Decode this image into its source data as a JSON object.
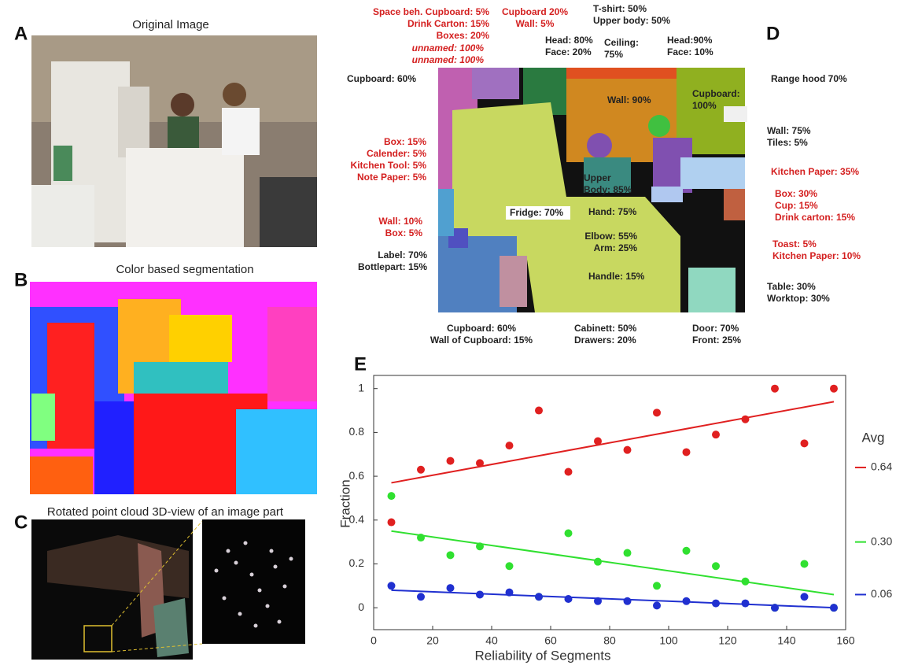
{
  "panels": {
    "a": {
      "letter": "A",
      "title": "Original Image"
    },
    "b": {
      "letter": "B",
      "title": "Color based segmentation"
    },
    "c": {
      "letter": "C",
      "title": "Rotated point cloud 3D-view of an image part"
    },
    "d": {
      "letter": "D",
      "labels": [
        [
          "Space beh. Cupboard: 5%",
          "Drink Carton: 15%",
          "Boxes: 20%"
        ],
        [
          "unnamed: 100%",
          "unnamed: 100%"
        ],
        [
          "Cupboard 20%",
          "Wall: 5%"
        ],
        [
          "Head: 80%",
          "Face: 20%"
        ],
        [
          "Ceiling:",
          "75%"
        ],
        [
          "T-shirt: 50%",
          "Upper body: 50%"
        ],
        [
          "Head:90%",
          "Face: 10%"
        ],
        [
          "Cupboard: 60%"
        ],
        [
          "Range hood 70%"
        ],
        [
          "Wall: 90%"
        ],
        [
          "Cupboard:",
          "100%"
        ],
        [
          "Box: 15%",
          "Calender: 5%",
          "Kitchen Tool: 5%",
          "Note Paper: 5%"
        ],
        [
          "Wall: 75%",
          "Tiles:  5%"
        ],
        [
          "Upper",
          "Body: 85%"
        ],
        [
          "Kitchen Paper: 35%"
        ],
        [
          "Fridge: 70%"
        ],
        [
          "Hand: 75%"
        ],
        [
          "Box: 30%",
          "Cup: 15%",
          "Drink carton: 15%"
        ],
        [
          "Wall: 10%",
          "Box: 5%"
        ],
        [
          "Elbow:  55%",
          "Arm: 25%"
        ],
        [
          "Toast: 5%",
          "Kitchen Paper: 10%"
        ],
        [
          "Label: 70%",
          "Bottlepart: 15%"
        ],
        [
          "Handle: 15%"
        ],
        [
          "Table: 30%",
          "Worktop: 30%"
        ],
        [
          "Cupboard: 60%",
          "Wall of Cupboard: 15%"
        ],
        [
          "Cabinett: 50%",
          "Drawers: 20%"
        ],
        [
          "Door: 70%",
          "Front:  25%"
        ]
      ]
    }
  },
  "chart_data": {
    "type": "scatter",
    "letter": "E",
    "x_label": "Reliability of Segments",
    "y_label": "Fraction",
    "y2_title": "Avg",
    "x": [
      6,
      16,
      26,
      36,
      46,
      56,
      66,
      76,
      86,
      96,
      106,
      116,
      126,
      136,
      146,
      156
    ],
    "series": [
      {
        "color": "#e02020",
        "values": [
          0.39,
          0.63,
          0.67,
          0.66,
          0.74,
          0.9,
          0.62,
          0.76,
          0.72,
          0.89,
          0.71,
          0.79,
          0.86,
          1.0,
          0.75,
          1.0
        ]
      },
      {
        "color": "#30e030",
        "values": [
          0.51,
          0.32,
          0.24,
          0.28,
          0.19,
          0.05,
          0.34,
          0.21,
          0.25,
          0.1,
          0.26,
          0.19,
          0.12,
          0.0,
          0.2,
          0.0
        ]
      },
      {
        "color": "#2030d0",
        "values": [
          0.1,
          0.05,
          0.09,
          0.06,
          0.07,
          0.05,
          0.04,
          0.03,
          0.03,
          0.01,
          0.03,
          0.02,
          0.02,
          0.0,
          0.05,
          0.0
        ]
      }
    ],
    "trend_lines": [
      {
        "color": "#e02020",
        "x": [
          6,
          156
        ],
        "values": [
          0.57,
          0.94
        ]
      },
      {
        "color": "#30e030",
        "x": [
          6,
          156
        ],
        "values": [
          0.35,
          0.06
        ]
      },
      {
        "color": "#2030d0",
        "x": [
          6,
          156
        ],
        "values": [
          0.08,
          0.0
        ]
      }
    ],
    "xlim": [
      0,
      160
    ],
    "xticks": [
      0,
      20,
      40,
      60,
      80,
      100,
      120,
      140,
      160
    ],
    "ylim": [
      -0.1,
      1.06
    ],
    "yticks": [
      0,
      0.2,
      0.4,
      0.6,
      0.8,
      1
    ],
    "y2lim": [
      -0.1,
      1.06
    ],
    "y2ticks": [
      0.64,
      {
        "value": 0.3,
        "label": "0.30"
      },
      0.06
    ]
  }
}
